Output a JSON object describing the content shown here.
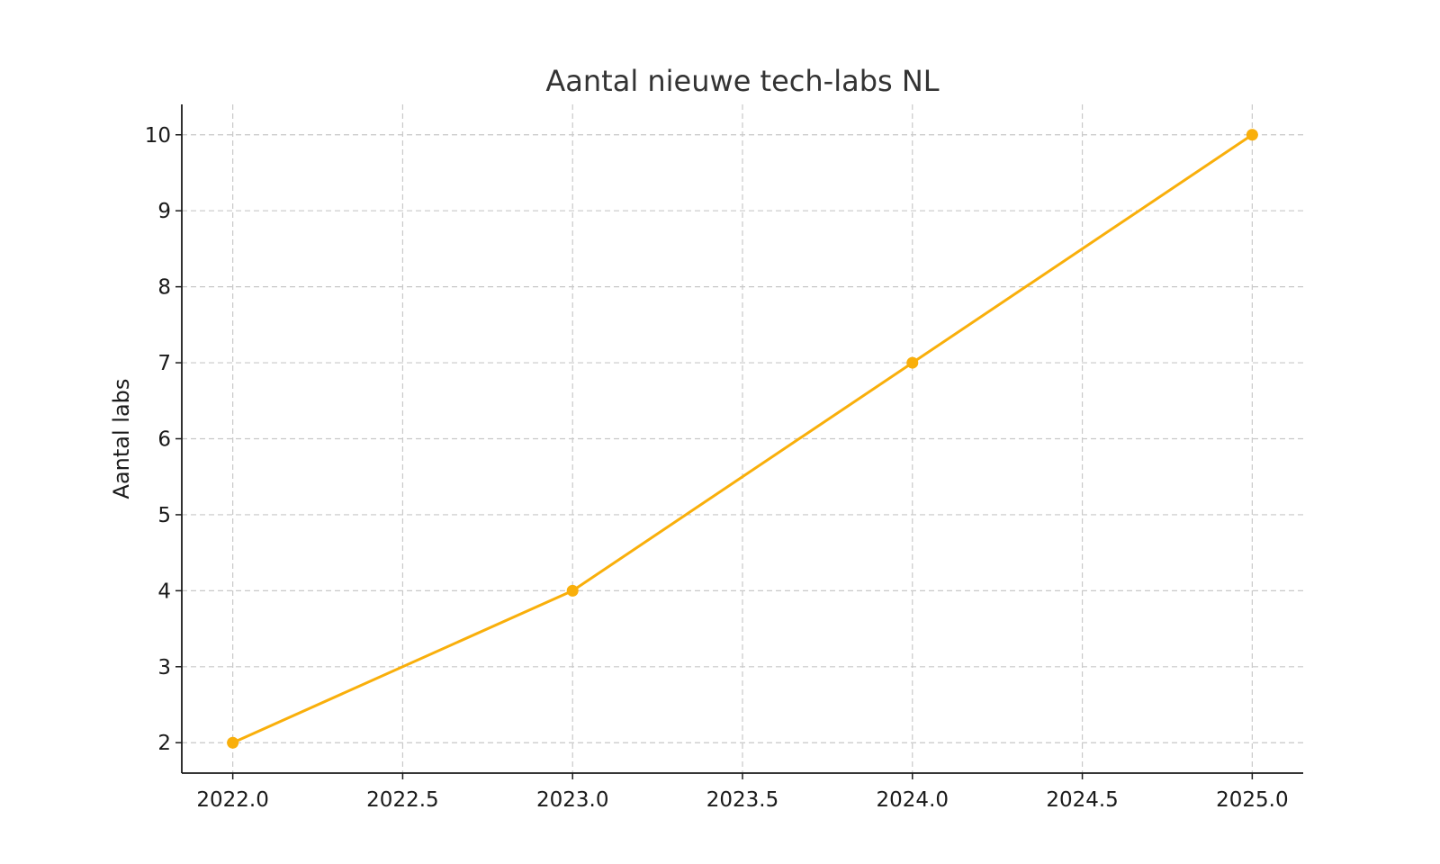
{
  "chart_data": {
    "type": "line",
    "title": "Aantal nieuwe tech-labs NL",
    "xlabel": "",
    "ylabel": "Aantal labs",
    "x": [
      2022,
      2023,
      2024,
      2025
    ],
    "series": [
      {
        "values": [
          2,
          4,
          7,
          10
        ],
        "color": "#F9AF0B",
        "marker": "circle"
      }
    ],
    "xlim": [
      2021.85,
      2025.15
    ],
    "ylim": [
      1.6,
      10.4
    ],
    "xticks": [
      2022.0,
      2022.5,
      2023.0,
      2023.5,
      2024.0,
      2024.5,
      2025.0
    ],
    "xtick_labels": [
      "2022.0",
      "2022.5",
      "2023.0",
      "2023.5",
      "2024.0",
      "2024.5",
      "2025.0"
    ],
    "yticks": [
      2,
      3,
      4,
      5,
      6,
      7,
      8,
      9,
      10
    ],
    "ytick_labels": [
      "2",
      "3",
      "4",
      "5",
      "6",
      "7",
      "8",
      "9",
      "10"
    ],
    "grid": true,
    "legend": "none"
  }
}
